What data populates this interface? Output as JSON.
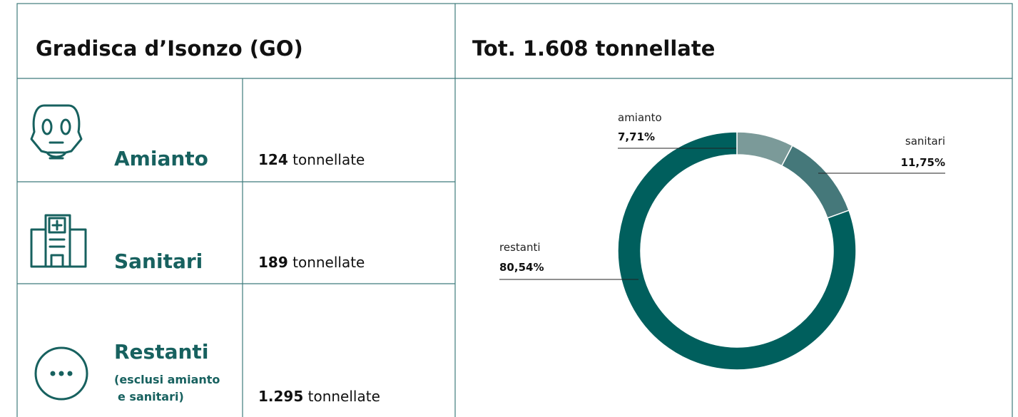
{
  "header": {
    "title": "Gradisca d’Isonzo (GO)"
  },
  "rows": [
    {
      "label": "Amianto",
      "amount": "124",
      "unit": "tonnellate"
    },
    {
      "label": "Sanitari",
      "amount": "189",
      "unit": "tonnellate"
    },
    {
      "label": "Restanti",
      "note": [
        "(esclusi amianto",
        "e sanitari)"
      ],
      "amount": "1.295",
      "unit": "tonnellate"
    }
  ],
  "chart_data": {
    "type": "pie",
    "donut": true,
    "title": "Tot. 1.608 tonnellate",
    "categories": [
      "amianto",
      "sanitari",
      "restanti"
    ],
    "values": [
      7.71,
      11.75,
      80.54
    ],
    "value_labels": [
      "7,71%",
      "11,75%",
      "80,54%"
    ],
    "colors": [
      "#7b9a99",
      "#45787a",
      "#005f5d"
    ]
  }
}
